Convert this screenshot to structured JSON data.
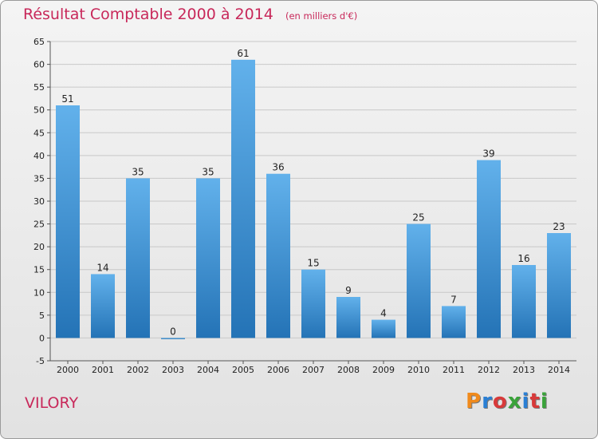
{
  "header": {
    "title": "Résultat Comptable 2000 à 2014",
    "unit_note": "(en milliers d'€)"
  },
  "footer": {
    "commune": "VILORY",
    "logo_text": "Proxiti"
  },
  "colors": {
    "bar_top": "#62b1eb",
    "bar_bottom": "#2473b6",
    "title": "#c8285a",
    "grid": "#c8c8c8",
    "logo_letters": [
      "#f08a1c",
      "#2a7fd4",
      "#d83a3a",
      "#3aa33a",
      "#2a7fd4",
      "#d83a3a",
      "#3aa33a"
    ]
  },
  "chart_data": {
    "type": "bar",
    "title": "Résultat Comptable 2000 à 2014",
    "subtitle": "(en milliers d'€)",
    "categories": [
      "2000",
      "2001",
      "2002",
      "2003",
      "2004",
      "2005",
      "2006",
      "2007",
      "2008",
      "2009",
      "2010",
      "2011",
      "2012",
      "2013",
      "2014"
    ],
    "values": [
      51,
      14,
      35,
      0,
      35,
      61,
      36,
      15,
      9,
      4,
      25,
      7,
      39,
      16,
      23
    ],
    "xlabel": "",
    "ylabel": "",
    "ylim": [
      -5,
      65
    ],
    "yticks": [
      -5,
      0,
      5,
      10,
      15,
      20,
      25,
      30,
      35,
      40,
      45,
      50,
      55,
      60,
      65
    ],
    "grid": true
  }
}
